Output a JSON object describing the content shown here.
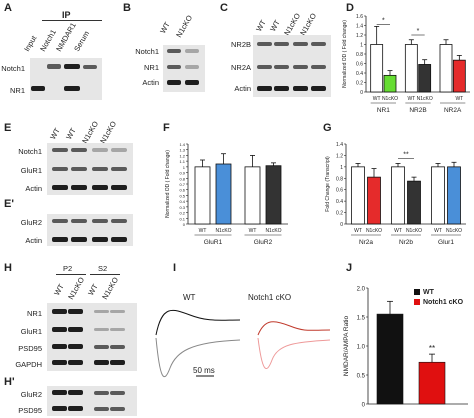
{
  "panels": {
    "A": {
      "label": "A",
      "header": "IP",
      "lanes": [
        "Input",
        "Notch1",
        "NMDAR1",
        "Serum"
      ],
      "rows": [
        "Notch1",
        "NR1"
      ]
    },
    "B": {
      "label": "B",
      "lanes": [
        "WT",
        "N1cKO"
      ],
      "rows": [
        "Notch1",
        "NR1",
        "Actin"
      ]
    },
    "C": {
      "label": "C",
      "lanes": [
        "WT",
        "WT",
        "N1cKO",
        "N1cKO"
      ],
      "rows": [
        "NR2B",
        "NR2A",
        "Actin"
      ]
    },
    "E": {
      "label": "E",
      "lanes": [
        "WT",
        "WT",
        "N1cKO",
        "N1cKO"
      ],
      "rows": [
        "Notch1",
        "GluR1",
        "Actin"
      ]
    },
    "Eprime": {
      "label": "E'",
      "rows": [
        "GluR2",
        "Actin"
      ]
    },
    "H": {
      "label": "H",
      "groups": [
        "P2",
        "S2"
      ],
      "lanes": [
        "WT",
        "N1cKO",
        "WT",
        "N1cKO"
      ],
      "rows": [
        "NR1",
        "GluR1",
        "PSD95",
        "GAPDH"
      ]
    },
    "Hprime": {
      "label": "H'",
      "rows": [
        "GluR2",
        "PSD95"
      ]
    },
    "I": {
      "label": "I",
      "traces": [
        "WT",
        "Notch1 cKO"
      ],
      "scalebar": "50 ms"
    }
  },
  "chart_data": [
    {
      "id": "D",
      "type": "bar",
      "ylabel": "Normalized OD ( Fold change)",
      "ylim": [
        0,
        1.6
      ],
      "ytick_labels": [
        "0",
        "0.2",
        "0.4",
        "0.6",
        "0.8",
        "1",
        "1.2",
        "1.4",
        "1.6"
      ],
      "groups": [
        "NR1",
        "NR2B",
        "NR2A"
      ],
      "categories": [
        "WT",
        "N1cKO",
        "WT",
        "N1cKO",
        "",
        "WT"
      ],
      "values": [
        1.0,
        0.35,
        1.0,
        0.58,
        1.0,
        0.67
      ],
      "errors": [
        0.38,
        0.1,
        0.1,
        0.1,
        0.1,
        0.1
      ],
      "colors": [
        "#ffffff",
        "#66dd33",
        "#ffffff",
        "#333333",
        "#ffffff",
        "#e52b2b"
      ],
      "annotations": [
        "*",
        "*"
      ]
    },
    {
      "id": "F",
      "type": "bar",
      "ylabel": "Normalized OD ( Fold change)",
      "ylim": [
        0,
        1.4
      ],
      "ytick_labels": [
        "0",
        "0.1",
        "0.2",
        "0.3",
        "0.4",
        "0.5",
        "0.6",
        "0.7",
        "0.8",
        "0.9",
        "1",
        "1.1",
        "1.2",
        "1.3",
        "1.4"
      ],
      "groups": [
        "GluR1",
        "GluR2"
      ],
      "categories": [
        "WT",
        "N1cKO",
        "WT",
        "N1cKO"
      ],
      "values": [
        1.0,
        1.05,
        1.0,
        1.02
      ],
      "errors": [
        0.12,
        0.18,
        0.2,
        0.05
      ],
      "colors": [
        "#ffffff",
        "#4a8fd8",
        "#ffffff",
        "#333333"
      ]
    },
    {
      "id": "G",
      "type": "bar",
      "ylabel": "Fold Change (Transcript)",
      "ylim": [
        0,
        1.4
      ],
      "ytick_labels": [
        "0",
        "0.2",
        "0.4",
        "0.6",
        "0.8",
        "1",
        "1.2",
        "1.4"
      ],
      "groups": [
        "Nr2a",
        "Nr2b",
        "Glur1"
      ],
      "categories": [
        "WT",
        "N1cKO",
        "WT",
        "N1cKO",
        "WT",
        "N1cKO"
      ],
      "values": [
        1.0,
        0.82,
        1.0,
        0.75,
        1.0,
        1.0
      ],
      "errors": [
        0.06,
        0.15,
        0.06,
        0.07,
        0.06,
        0.08
      ],
      "colors": [
        "#ffffff",
        "#e52b2b",
        "#ffffff",
        "#333333",
        "#ffffff",
        "#4a8fd8"
      ],
      "annotations": [
        "**"
      ]
    },
    {
      "id": "J",
      "type": "bar",
      "ylabel": "NMDAR/AMPA Ratio",
      "ylim": [
        0,
        2
      ],
      "ytick_labels": [
        "0",
        "0.5",
        "1.0",
        "1.5",
        "2.0"
      ],
      "categories": [
        "WT",
        "Notch1 cKO"
      ],
      "values": [
        1.55,
        0.72
      ],
      "errors": [
        0.22,
        0.14
      ],
      "colors": [
        "#111111",
        "#e01010"
      ],
      "legend": [
        "WT",
        "Notch1 cKO"
      ],
      "annotations": [
        "**"
      ]
    }
  ]
}
